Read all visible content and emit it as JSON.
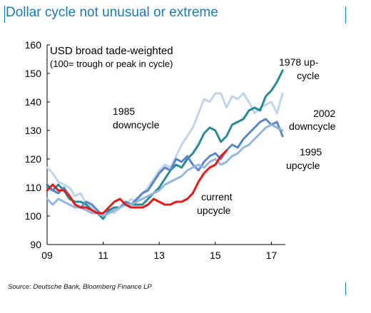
{
  "header": {
    "title": "Dollar cycle not unusual or extreme"
  },
  "footer": {
    "source": "Source: Deutsche Bank, Bloomberg Finance LP"
  },
  "colors": {
    "accent": "#1a7ab5",
    "cycle_1978": "#2a8a93",
    "cycle_1985": "#c0d4ec",
    "cycle_2002": "#5a86c4",
    "cycle_1995": "#93b5df",
    "current": "#e21a1a"
  },
  "chart_data": {
    "type": "line",
    "title": "USD broad  tade-weighted",
    "subtitle": "(100= trough or peak in cycle)",
    "xlabel": "",
    "ylabel": "",
    "xlim": [
      9,
      17.5
    ],
    "ylim": [
      90,
      160
    ],
    "x_ticks": [
      9,
      11,
      13,
      15,
      17
    ],
    "x_tick_labels": [
      "09",
      "11",
      "13",
      "15",
      "17"
    ],
    "y_ticks": [
      90,
      100,
      110,
      120,
      130,
      140,
      150,
      160
    ],
    "y_tick_labels": [
      "90",
      "100",
      "110",
      "120",
      "130",
      "140",
      "150",
      "160"
    ],
    "grid": false,
    "annotations": [
      {
        "text": "1985",
        "series": "1985 downcycle"
      },
      {
        "text": "downcycle",
        "series": "1985 downcycle"
      },
      {
        "text": "1978 up-",
        "series": "1978 up-cycle"
      },
      {
        "text": "cycle",
        "series": "1978 up-cycle"
      },
      {
        "text": "2002",
        "series": "2002 downcycle"
      },
      {
        "text": "downcycle",
        "series": "2002 downcycle"
      },
      {
        "text": "1995",
        "series": "1995 upcycle"
      },
      {
        "text": "upcycle",
        "series": "1995 upcycle"
      },
      {
        "text": "current",
        "series": "current upcycle"
      },
      {
        "text": "upcycle",
        "series": "current upcycle"
      }
    ],
    "series": [
      {
        "key": "1985",
        "color": "#c0d4ec",
        "x": [
          9.0,
          9.2,
          9.4,
          9.6,
          9.8,
          10.0,
          10.2,
          10.4,
          10.6,
          10.8,
          11.0,
          11.2,
          11.4,
          11.6,
          11.8,
          12.0,
          12.2,
          12.4,
          12.6,
          12.8,
          13.0,
          13.2,
          13.4,
          13.6,
          13.8,
          14.0,
          14.2,
          14.4,
          14.6,
          14.8,
          15.0,
          15.2,
          15.4,
          15.6,
          15.8,
          16.0,
          16.2,
          16.4,
          16.6,
          16.8,
          17.0,
          17.2,
          17.4
        ],
        "y": [
          117,
          115,
          112,
          111,
          110,
          107,
          108,
          104,
          103,
          101,
          101,
          102,
          101,
          103,
          104,
          106,
          105,
          108,
          110,
          113,
          116,
          118,
          117,
          121,
          125,
          128,
          131,
          136,
          141,
          140,
          143,
          143,
          138,
          142,
          141,
          143,
          140,
          136,
          138,
          139,
          140,
          136,
          143
        ]
      },
      {
        "key": "1978",
        "color": "#2a8a93",
        "x": [
          9.0,
          9.2,
          9.4,
          9.6,
          9.8,
          10.0,
          10.2,
          10.4,
          10.6,
          10.8,
          11.0,
          11.2,
          11.4,
          11.6,
          11.8,
          12.0,
          12.2,
          12.4,
          12.6,
          12.8,
          13.0,
          13.2,
          13.4,
          13.6,
          13.8,
          14.0,
          14.2,
          14.4,
          14.6,
          14.8,
          15.0,
          15.2,
          15.4,
          15.6,
          15.8,
          16.0,
          16.2,
          16.4,
          16.6,
          16.8,
          17.0,
          17.2,
          17.4
        ],
        "y": [
          111,
          109,
          111,
          109,
          106,
          105,
          105,
          104,
          102,
          101,
          99,
          102,
          103,
          103,
          105,
          104,
          104,
          104,
          106,
          108,
          110,
          113,
          116,
          118,
          117,
          120,
          122,
          125,
          129,
          131,
          130,
          126,
          128,
          132,
          133,
          134,
          137,
          138,
          137,
          142,
          144,
          147,
          151
        ]
      },
      {
        "key": "2002",
        "color": "#5a86c4",
        "x": [
          9.0,
          9.2,
          9.4,
          9.6,
          9.8,
          10.0,
          10.2,
          10.4,
          10.6,
          10.8,
          11.0,
          11.2,
          11.4,
          11.6,
          11.8,
          12.0,
          12.2,
          12.4,
          12.6,
          12.8,
          13.0,
          13.2,
          13.4,
          13.6,
          13.8,
          14.0,
          14.2,
          14.4,
          14.6,
          14.8,
          15.0,
          15.2,
          15.4,
          15.6,
          15.8,
          16.0,
          16.2,
          16.4,
          16.6,
          16.8,
          17.0,
          17.2,
          17.4
        ],
        "y": [
          110,
          109,
          108,
          110,
          107,
          104,
          103,
          105,
          104,
          102,
          100,
          101,
          102,
          103,
          105,
          104,
          106,
          108,
          109,
          112,
          115,
          117,
          116,
          120,
          119,
          121,
          118,
          116,
          119,
          121,
          122,
          120,
          123,
          125,
          124,
          127,
          129,
          131,
          133,
          134,
          132,
          133,
          128
        ]
      },
      {
        "key": "1995",
        "color": "#93b5df",
        "x": [
          9.0,
          9.2,
          9.4,
          9.6,
          9.8,
          10.0,
          10.2,
          10.4,
          10.6,
          10.8,
          11.0,
          11.2,
          11.4,
          11.6,
          11.8,
          12.0,
          12.2,
          12.4,
          12.6,
          12.8,
          13.0,
          13.2,
          13.4,
          13.6,
          13.8,
          14.0,
          14.2,
          14.4,
          14.6,
          14.8,
          15.0,
          15.2,
          15.4,
          15.6,
          15.8,
          16.0,
          16.2,
          16.4,
          16.6,
          16.8,
          17.0,
          17.2,
          17.4
        ],
        "y": [
          106,
          104,
          106,
          105,
          104,
          103,
          103,
          102,
          101,
          101,
          100,
          101,
          102,
          103,
          104,
          104,
          105,
          106,
          107,
          108,
          109,
          111,
          112,
          113,
          114,
          116,
          117,
          118,
          117,
          119,
          120,
          118,
          119,
          121,
          122,
          124,
          125,
          127,
          129,
          131,
          132,
          131,
          130
        ]
      },
      {
        "key": "current",
        "color": "#e21a1a",
        "x": [
          9.0,
          9.2,
          9.4,
          9.6,
          9.8,
          10.0,
          10.2,
          10.4,
          10.6,
          10.8,
          11.0,
          11.2,
          11.4,
          11.6,
          11.8,
          12.0,
          12.2,
          12.4,
          12.6,
          12.8,
          13.0,
          13.2,
          13.4,
          13.6,
          13.8,
          14.0,
          14.2,
          14.4,
          14.6,
          14.8,
          15.0,
          15.2,
          15.4
        ],
        "y": [
          109,
          111,
          109,
          109,
          107,
          104,
          103,
          103,
          102,
          101,
          101,
          103,
          105,
          106,
          104,
          103,
          103,
          103,
          104,
          106,
          105,
          104,
          104,
          105,
          105,
          106,
          108,
          112,
          115,
          117,
          118,
          121,
          123
        ]
      }
    ]
  }
}
